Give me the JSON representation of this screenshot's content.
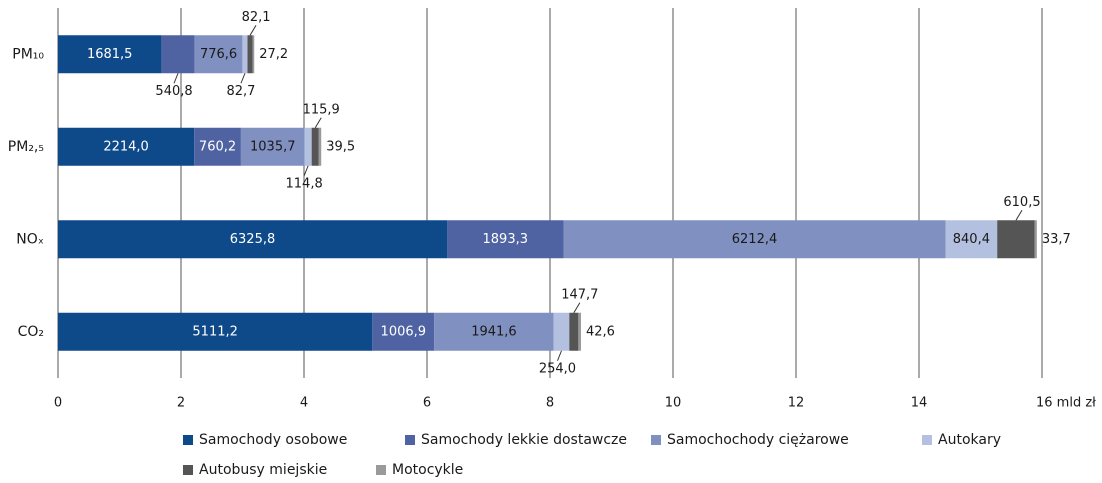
{
  "chart_data": {
    "type": "stacked_bar_horizontal",
    "categories": [
      "PM₁₀",
      "PM₂,₅",
      "NOₓ",
      "CO₂"
    ],
    "series": [
      {
        "name": "Samochody osobowe",
        "color": "#0e4a8a",
        "values": [
          1.6815,
          2.214,
          6.3258,
          5.1112
        ],
        "value_labels": [
          "1681,5",
          "2214,0",
          "6325,8",
          "5111,2"
        ]
      },
      {
        "name": "Samochody lekkie dostawcze",
        "color": "#4f63a3",
        "values": [
          0.5408,
          0.7602,
          1.8933,
          1.0069
        ],
        "value_labels": [
          "540,8",
          "760,2",
          "1893,3",
          "1006,9"
        ]
      },
      {
        "name": "Samochochody ciężarowe",
        "color": "#8090c0",
        "values": [
          0.7766,
          1.0357,
          6.2124,
          1.9416
        ],
        "value_labels": [
          "776,6",
          "1035,7",
          "6212,4",
          "1941,6"
        ]
      },
      {
        "name": "Autokary",
        "color": "#b4c0e0",
        "values": [
          0.0827,
          0.1148,
          0.8404,
          0.254
        ],
        "value_labels": [
          "82,7",
          "114,8",
          "840,4",
          "254,0"
        ]
      },
      {
        "name": "Autobusy miejskie",
        "color": "#555555",
        "values": [
          0.0821,
          0.1159,
          0.6105,
          0.1477
        ],
        "value_labels": [
          "82,1",
          "115,9",
          "610,5",
          "147,7"
        ]
      },
      {
        "name": "Motocykle",
        "color": "#9a9a9a",
        "values": [
          0.0272,
          0.0395,
          0.0337,
          0.0426
        ],
        "value_labels": [
          "27,2",
          "39,5",
          "33,7",
          "42,6"
        ]
      }
    ],
    "xlim": [
      0,
      16
    ],
    "xticks": [
      0,
      2,
      4,
      6,
      8,
      10,
      12,
      14,
      {
        "value": 16,
        "label": "16 mld zł"
      }
    ],
    "grid": true
  }
}
